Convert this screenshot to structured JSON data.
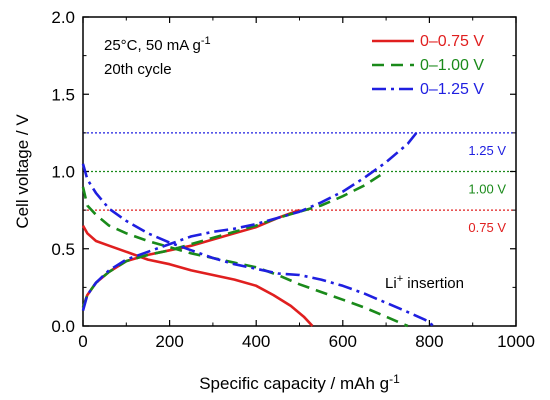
{
  "chart_data": {
    "type": "line",
    "xlabel": "Specific capacity / mAh g",
    "xlabel_sup": "-1",
    "ylabel": "Cell voltage / V",
    "xlim": [
      0,
      1000
    ],
    "ylim": [
      0,
      2.0
    ],
    "xticks": [
      "0",
      "200",
      "400",
      "600",
      "800",
      "1000"
    ],
    "yticks": [
      "0.0",
      "0.5",
      "1.0",
      "1.5",
      "2.0"
    ],
    "grid": false,
    "legend_position": "top-right",
    "annotations": {
      "line1_pre": "25°C, 50 mA g",
      "line1_sup": "-1",
      "line2": "20th cycle",
      "insertion_pre": "Li",
      "insertion_sup": "+",
      "insertion_post": " insertion"
    },
    "reference_lines": [
      {
        "y": 1.25,
        "label": "1.25 V",
        "color": "#1f1fe0"
      },
      {
        "y": 1.0,
        "label": "1.00 V",
        "color": "#1a8a1a"
      },
      {
        "y": 0.75,
        "label": "0.75 V",
        "color": "#e01f1f"
      }
    ],
    "series": [
      {
        "name": "0–0.75 V",
        "color": "#e01f1f",
        "dash": "",
        "discharge": [
          [
            0,
            0.65
          ],
          [
            10,
            0.6
          ],
          [
            30,
            0.55
          ],
          [
            60,
            0.52
          ],
          [
            100,
            0.48
          ],
          [
            150,
            0.43
          ],
          [
            200,
            0.4
          ],
          [
            250,
            0.36
          ],
          [
            300,
            0.33
          ],
          [
            350,
            0.3
          ],
          [
            400,
            0.26
          ],
          [
            440,
            0.2
          ],
          [
            480,
            0.13
          ],
          [
            510,
            0.06
          ],
          [
            530,
            0.0
          ]
        ],
        "charge": [
          [
            0,
            0.12
          ],
          [
            10,
            0.2
          ],
          [
            30,
            0.28
          ],
          [
            60,
            0.35
          ],
          [
            100,
            0.42
          ],
          [
            150,
            0.46
          ],
          [
            200,
            0.49
          ],
          [
            250,
            0.52
          ],
          [
            300,
            0.56
          ],
          [
            350,
            0.6
          ],
          [
            400,
            0.64
          ],
          [
            450,
            0.7
          ],
          [
            500,
            0.75
          ]
        ]
      },
      {
        "name": "0–1.00 V",
        "color": "#1a8a1a",
        "dash": "12,7",
        "discharge": [
          [
            0,
            0.9
          ],
          [
            10,
            0.78
          ],
          [
            30,
            0.72
          ],
          [
            60,
            0.65
          ],
          [
            100,
            0.6
          ],
          [
            150,
            0.55
          ],
          [
            200,
            0.51
          ],
          [
            250,
            0.47
          ],
          [
            300,
            0.44
          ],
          [
            350,
            0.41
          ],
          [
            400,
            0.38
          ],
          [
            450,
            0.33
          ],
          [
            500,
            0.27
          ],
          [
            550,
            0.22
          ],
          [
            600,
            0.17
          ],
          [
            650,
            0.12
          ],
          [
            700,
            0.06
          ],
          [
            750,
            0.0
          ]
        ],
        "charge": [
          [
            0,
            0.12
          ],
          [
            10,
            0.2
          ],
          [
            30,
            0.28
          ],
          [
            60,
            0.35
          ],
          [
            100,
            0.42
          ],
          [
            150,
            0.46
          ],
          [
            200,
            0.49
          ],
          [
            250,
            0.53
          ],
          [
            300,
            0.57
          ],
          [
            350,
            0.61
          ],
          [
            400,
            0.65
          ],
          [
            450,
            0.7
          ],
          [
            500,
            0.74
          ],
          [
            550,
            0.78
          ],
          [
            600,
            0.84
          ],
          [
            650,
            0.91
          ],
          [
            700,
            1.0
          ]
        ]
      },
      {
        "name": "0–1.25 V",
        "color": "#1f1fe0",
        "dash": "14,5,3,5",
        "discharge": [
          [
            0,
            1.05
          ],
          [
            10,
            0.95
          ],
          [
            30,
            0.86
          ],
          [
            60,
            0.76
          ],
          [
            100,
            0.68
          ],
          [
            150,
            0.6
          ],
          [
            200,
            0.54
          ],
          [
            250,
            0.49
          ],
          [
            300,
            0.44
          ],
          [
            350,
            0.4
          ],
          [
            400,
            0.37
          ],
          [
            450,
            0.34
          ],
          [
            500,
            0.33
          ],
          [
            550,
            0.3
          ],
          [
            600,
            0.26
          ],
          [
            650,
            0.21
          ],
          [
            700,
            0.15
          ],
          [
            750,
            0.09
          ],
          [
            790,
            0.04
          ],
          [
            810,
            0.0
          ]
        ],
        "charge": [
          [
            0,
            0.1
          ],
          [
            10,
            0.2
          ],
          [
            30,
            0.28
          ],
          [
            60,
            0.36
          ],
          [
            100,
            0.43
          ],
          [
            150,
            0.48
          ],
          [
            200,
            0.53
          ],
          [
            250,
            0.58
          ],
          [
            300,
            0.61
          ],
          [
            350,
            0.63
          ],
          [
            400,
            0.66
          ],
          [
            450,
            0.7
          ],
          [
            500,
            0.74
          ],
          [
            550,
            0.8
          ],
          [
            600,
            0.87
          ],
          [
            650,
            0.96
          ],
          [
            700,
            1.06
          ],
          [
            750,
            1.18
          ],
          [
            770,
            1.25
          ]
        ]
      }
    ]
  }
}
